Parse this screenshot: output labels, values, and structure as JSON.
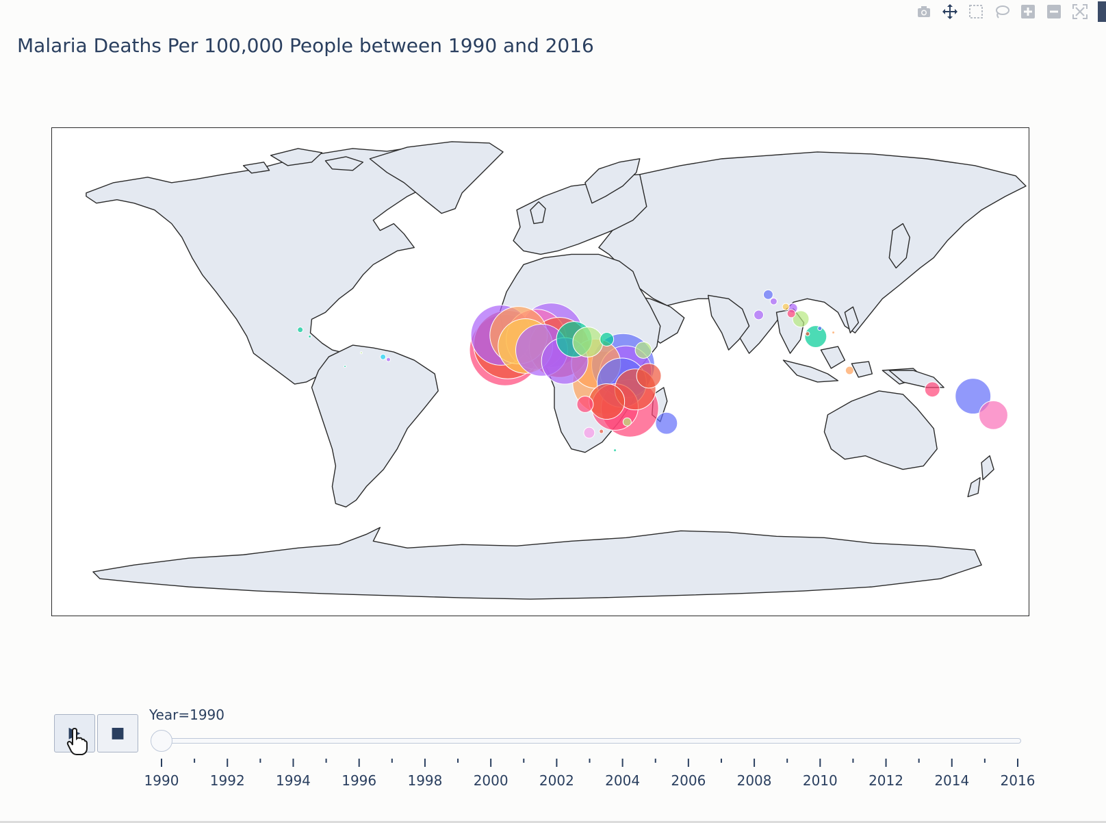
{
  "title": "Malaria Deaths Per 100,000 People between 1990 and 2016",
  "modebar": {
    "icons": [
      "camera-icon",
      "pan-icon",
      "box-select-icon",
      "lasso-icon",
      "zoom-in-icon",
      "zoom-out-icon",
      "autoscale-icon"
    ]
  },
  "animation": {
    "play_icon": "▶",
    "stop_icon": "■",
    "current_label": "Year=1990",
    "current_year": 1990,
    "year_start": 1990,
    "year_end": 2016,
    "tick_labels": [
      "1990",
      "1992",
      "1994",
      "1996",
      "1998",
      "2000",
      "2002",
      "2004",
      "2006",
      "2008",
      "2010",
      "2012",
      "2014",
      "2016"
    ]
  },
  "colors": {
    "land": "#e4e9f1",
    "coast": "#2a2a2a",
    "ocean": "#ffffff",
    "text": "#2a3f5f"
  },
  "chart_data": {
    "type": "scatter_geo",
    "title": "Malaria Deaths Per 100,000 People between 1990 and 2016",
    "frame": "Year=1990",
    "projection": "equirectangular",
    "points": [
      {
        "lon": -14.5,
        "lat": 13.5,
        "size": 44,
        "color": "#ab63fa"
      },
      {
        "lon": -12.0,
        "lat": 10.0,
        "size": 50,
        "color": "#ef553b"
      },
      {
        "lon": -13.0,
        "lat": 8.0,
        "size": 52,
        "color": "#ff4477"
      },
      {
        "lon": -8.0,
        "lat": 13.5,
        "size": 42,
        "color": "#ffa15a"
      },
      {
        "lon": -5.5,
        "lat": 9.5,
        "size": 40,
        "color": "#fecb52"
      },
      {
        "lon": -1.5,
        "lat": 12.0,
        "size": 44,
        "color": "#fa6fb8"
      },
      {
        "lon": 0.5,
        "lat": 8.0,
        "size": 38,
        "color": "#ab63fa"
      },
      {
        "lon": 4.0,
        "lat": 13.5,
        "size": 47,
        "color": "#ab63fa"
      },
      {
        "lon": 7.0,
        "lat": 9.0,
        "size": 44,
        "color": "#ef553b"
      },
      {
        "lon": 9.0,
        "lat": 4.0,
        "size": 34,
        "color": "#ab63fa"
      },
      {
        "lon": 12.5,
        "lat": 12.0,
        "size": 26,
        "color": "#00cc96"
      },
      {
        "lon": 17.5,
        "lat": 11.0,
        "size": 22,
        "color": "#b6e880"
      },
      {
        "lon": 20.5,
        "lat": 3.0,
        "size": 36,
        "color": "#ffa15a"
      },
      {
        "lon": 23.5,
        "lat": -4.0,
        "size": 46,
        "color": "#ffa15a"
      },
      {
        "lon": 24.5,
        "lat": 12.0,
        "size": 10,
        "color": "#00cc96"
      },
      {
        "lon": 31.5,
        "lat": 0.0,
        "size": 38,
        "color": "#ab63fa"
      },
      {
        "lon": 30.5,
        "lat": 2.5,
        "size": 46,
        "color": "#636efa"
      },
      {
        "lon": 30.0,
        "lat": -4.0,
        "size": 36,
        "color": "#636efa"
      },
      {
        "lon": 35.0,
        "lat": -6.5,
        "size": 30,
        "color": "#ef553b"
      },
      {
        "lon": 33.0,
        "lat": -13.5,
        "size": 42,
        "color": "#ff4477"
      },
      {
        "lon": 27.5,
        "lat": -13.0,
        "size": 34,
        "color": "#ff4477"
      },
      {
        "lon": 24.5,
        "lat": -11.0,
        "size": 26,
        "color": "#ef553b"
      },
      {
        "lon": 38.0,
        "lat": 8.0,
        "size": 12,
        "color": "#b6e880"
      },
      {
        "lon": 40.0,
        "lat": -1.5,
        "size": 18,
        "color": "#ef553b"
      },
      {
        "lon": 46.5,
        "lat": -19.0,
        "size": 16,
        "color": "#636efa"
      },
      {
        "lon": 16.5,
        "lat": -12.0,
        "size": 12,
        "color": "#ff4477"
      },
      {
        "lon": 18.0,
        "lat": -22.5,
        "size": 8,
        "color": "#fa9ae8"
      },
      {
        "lon": 32.0,
        "lat": -18.5,
        "size": 6,
        "color": "#b6e880"
      },
      {
        "lon": 22.5,
        "lat": -22.0,
        "size": 3,
        "color": "#ef553b"
      },
      {
        "lon": 27.5,
        "lat": -29.0,
        "size": 2,
        "color": "#00cc96"
      },
      {
        "lon": 84.0,
        "lat": 28.5,
        "size": 7,
        "color": "#636efa"
      },
      {
        "lon": 86.0,
        "lat": 26.0,
        "size": 5,
        "color": "#ab63fa"
      },
      {
        "lon": 80.5,
        "lat": 21.0,
        "size": 7,
        "color": "#ab63fa"
      },
      {
        "lon": 90.5,
        "lat": 24.0,
        "size": 5,
        "color": "#fecb52"
      },
      {
        "lon": 93.0,
        "lat": 23.5,
        "size": 7,
        "color": "#ab63fa"
      },
      {
        "lon": 92.5,
        "lat": 21.5,
        "size": 6,
        "color": "#ff4477"
      },
      {
        "lon": 96.0,
        "lat": 19.5,
        "size": 12,
        "color": "#b6e880"
      },
      {
        "lon": 101.5,
        "lat": 13.0,
        "size": 16,
        "color": "#00cc96"
      },
      {
        "lon": 98.5,
        "lat": 14.0,
        "size": 3,
        "color": "#ef553b"
      },
      {
        "lon": 103.0,
        "lat": 16.0,
        "size": 3,
        "color": "#636efa"
      },
      {
        "lon": 108.0,
        "lat": 14.5,
        "size": 2,
        "color": "#ffa15a"
      },
      {
        "lon": 114.0,
        "lat": 0.5,
        "size": 6,
        "color": "#ffa15a"
      },
      {
        "lon": 144.5,
        "lat": -6.5,
        "size": 11,
        "color": "#ff4477"
      },
      {
        "lon": 159.5,
        "lat": -9.0,
        "size": 26,
        "color": "#636efa"
      },
      {
        "lon": 167.0,
        "lat": -16.0,
        "size": 21,
        "color": "#fa6fb8"
      },
      {
        "lon": -88.5,
        "lat": 15.5,
        "size": 4,
        "color": "#00cc96"
      },
      {
        "lon": -85.0,
        "lat": 13.0,
        "size": 2,
        "color": "#00cc96"
      },
      {
        "lon": -58.0,
        "lat": 5.5,
        "size": 4,
        "color": "#19d3f3"
      },
      {
        "lon": -56.0,
        "lat": 4.5,
        "size": 3,
        "color": "#ab63fa"
      },
      {
        "lon": -66.0,
        "lat": 7.0,
        "size": 1.5,
        "color": "#b6e880"
      },
      {
        "lon": -72.0,
        "lat": 2.0,
        "size": 1.5,
        "color": "#00cc96"
      }
    ]
  }
}
